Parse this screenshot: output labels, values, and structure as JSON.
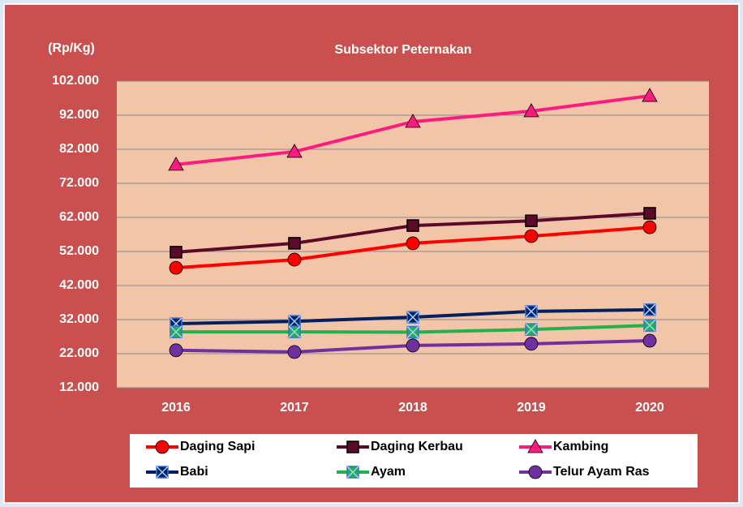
{
  "chart_data": {
    "type": "line",
    "title": "Subsektor Peternakan",
    "y_label": "(Rp/Kg)",
    "categories": [
      "2016",
      "2017",
      "2018",
      "2019",
      "2020"
    ],
    "series": [
      {
        "name": "Daging Sapi",
        "color": "#ff0000",
        "marker": "circle",
        "values": [
          47200,
          49600,
          54400,
          56500,
          59100
        ]
      },
      {
        "name": "Daging Kerbau",
        "color": "#5c0a2a",
        "marker": "square",
        "values": [
          51800,
          54400,
          59600,
          61000,
          63200
        ]
      },
      {
        "name": "Kambing",
        "color": "#ff1a80",
        "marker": "triangle",
        "values": [
          77500,
          81300,
          90100,
          93200,
          97700
        ]
      },
      {
        "name": "Babi",
        "color": "#002060",
        "marker": "square-x",
        "values": [
          30800,
          31500,
          32700,
          34400,
          34900
        ]
      },
      {
        "name": "Ayam",
        "color": "#22b14c",
        "marker": "square-x",
        "values": [
          28400,
          28400,
          28300,
          29100,
          30300
        ]
      },
      {
        "name": "Telur Ayam Ras",
        "color": "#7030a0",
        "marker": "circle",
        "values": [
          23000,
          22500,
          24400,
          24900,
          25800
        ]
      }
    ],
    "ylim": [
      12000,
      102000
    ],
    "yticks": [
      {
        "value": 12000,
        "label": "12.000"
      },
      {
        "value": 22000,
        "label": "22.000"
      },
      {
        "value": 32000,
        "label": "32.000"
      },
      {
        "value": 42000,
        "label": "42.000"
      },
      {
        "value": 52000,
        "label": "52.000"
      },
      {
        "value": 62000,
        "label": "62.000"
      },
      {
        "value": 72000,
        "label": "72.000"
      },
      {
        "value": 82000,
        "label": "82.000"
      },
      {
        "value": 92000,
        "label": "92.000"
      },
      {
        "value": 102000,
        "label": "102.000"
      }
    ],
    "grid": true,
    "legend": "bottom"
  }
}
